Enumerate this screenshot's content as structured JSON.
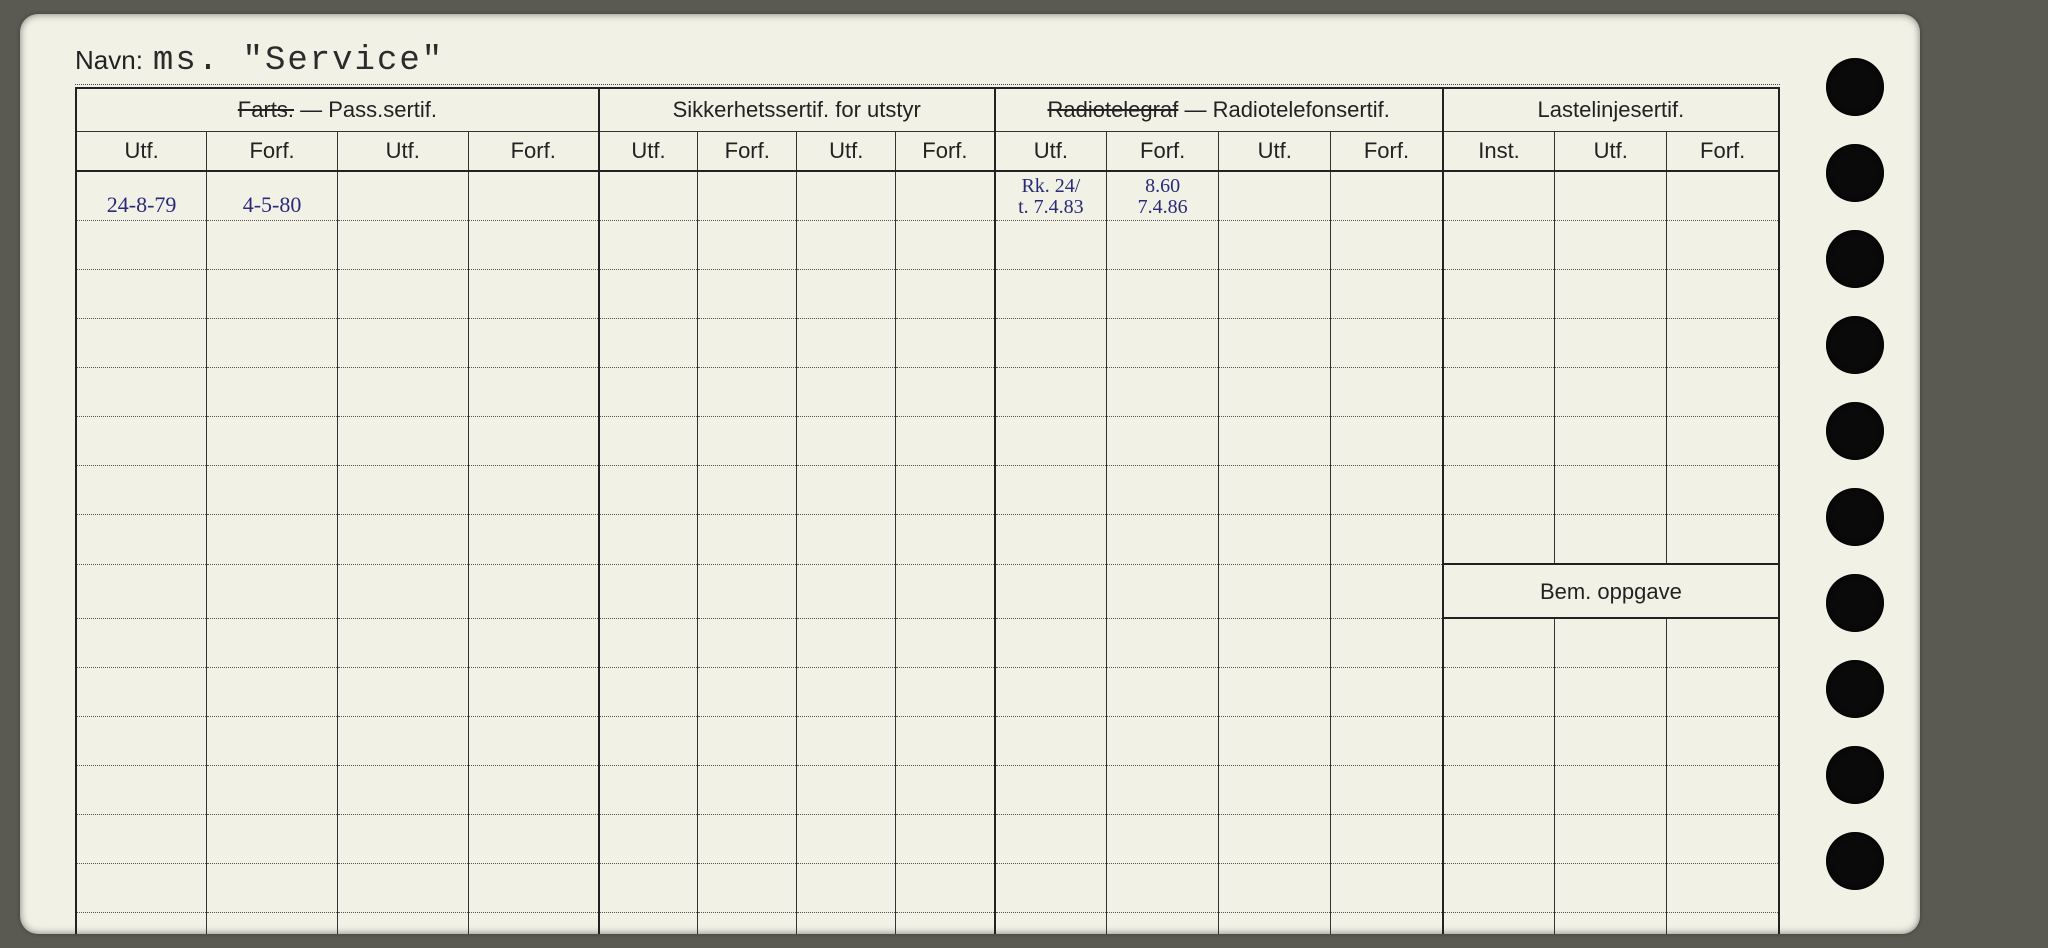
{
  "background_color": "#5a5a52",
  "card_color": "#f2f1e6",
  "ink_color": "#222222",
  "handwriting_color": "#2a2a7a",
  "navn": {
    "label": "Navn:",
    "value": "ms. \"Service\""
  },
  "sections": {
    "pass": {
      "strike": "Farts.",
      "rest": " — Pass.sertif.",
      "cols": [
        "Utf.",
        "Forf.",
        "Utf.",
        "Forf."
      ]
    },
    "sikker": {
      "title": "Sikkerhetssertif. for utstyr",
      "cols": [
        "Utf.",
        "Forf.",
        "Utf.",
        "Forf."
      ]
    },
    "radio": {
      "strike": "Radiotelegraf",
      "rest": " — Radiotelefonsertif.",
      "cols": [
        "Utf.",
        "Forf.",
        "Utf.",
        "Forf."
      ]
    },
    "laste": {
      "title": "Lastelinjesertif.",
      "cols": [
        "Inst.",
        "Utf.",
        "Forf."
      ]
    }
  },
  "bem_label": "Bem. oppgave",
  "entries": {
    "pass_utf_1": "24-8-79",
    "pass_forf_1": "4-5-80",
    "radio_utf_1a": "Rk. 24/",
    "radio_utf_1b": "t. 7.4.83",
    "radio_forf_1a": "8.60",
    "radio_forf_1b": "7.4.86"
  },
  "body_rows": 16,
  "bem_row_index": 8,
  "punch_count": 10
}
